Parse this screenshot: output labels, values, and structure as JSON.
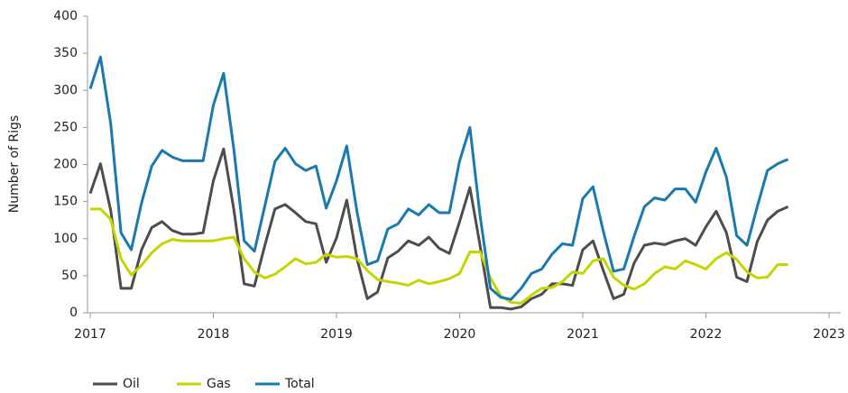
{
  "chart_data": {
    "type": "line",
    "y_label": "Number of Rigs",
    "x": [
      "2017-01",
      "2017-02",
      "2017-03",
      "2017-04",
      "2017-05",
      "2017-06",
      "2017-07",
      "2017-08",
      "2017-09",
      "2017-10",
      "2017-11",
      "2017-12",
      "2018-01",
      "2018-02",
      "2018-03",
      "2018-04",
      "2018-05",
      "2018-06",
      "2018-07",
      "2018-08",
      "2018-09",
      "2018-10",
      "2018-11",
      "2018-12",
      "2019-01",
      "2019-02",
      "2019-03",
      "2019-04",
      "2019-05",
      "2019-06",
      "2019-07",
      "2019-08",
      "2019-09",
      "2019-10",
      "2019-11",
      "2019-12",
      "2020-01",
      "2020-02",
      "2020-03",
      "2020-04",
      "2020-05",
      "2020-06",
      "2020-07",
      "2020-08",
      "2020-09",
      "2020-10",
      "2020-11",
      "2020-12",
      "2021-01",
      "2021-02",
      "2021-03",
      "2021-04",
      "2021-05",
      "2021-06",
      "2021-07",
      "2021-08",
      "2021-09",
      "2021-10",
      "2021-11",
      "2021-12",
      "2022-01",
      "2022-02",
      "2022-03",
      "2022-04",
      "2022-05",
      "2022-06",
      "2022-07",
      "2022-08",
      "2022-09"
    ],
    "series": [
      {
        "name": "Oil",
        "color": "#4d4d4d",
        "values": [
          161,
          201,
          138,
          33,
          33,
          85,
          115,
          123,
          111,
          106,
          106,
          108,
          178,
          221,
          139,
          39,
          36,
          90,
          140,
          146,
          135,
          123,
          120,
          68,
          101,
          152,
          73,
          19,
          28,
          74,
          83,
          97,
          91,
          102,
          87,
          80,
          123,
          169,
          90,
          7,
          7,
          5,
          8,
          19,
          25,
          39,
          39,
          37,
          85,
          97,
          57,
          19,
          25,
          67,
          91,
          94,
          92,
          97,
          100,
          91,
          116,
          137,
          108,
          48,
          42,
          96,
          125,
          137,
          143
        ]
      },
      {
        "name": "Gas",
        "color": "#c3d600",
        "values": [
          140,
          140,
          126,
          73,
          51,
          64,
          81,
          93,
          99,
          97,
          97,
          97,
          97,
          100,
          102,
          73,
          55,
          47,
          52,
          62,
          73,
          66,
          68,
          79,
          75,
          76,
          73,
          57,
          45,
          42,
          40,
          37,
          44,
          39,
          42,
          46,
          53,
          82,
          82,
          47,
          23,
          14,
          13,
          24,
          33,
          34,
          42,
          55,
          53,
          70,
          73,
          48,
          37,
          32,
          39,
          53,
          62,
          59,
          70,
          65,
          59,
          73,
          81,
          72,
          55,
          47,
          48,
          65,
          65
        ]
      },
      {
        "name": "Total",
        "color": "#1a7ab0",
        "values": [
          302,
          345,
          255,
          108,
          85,
          148,
          198,
          219,
          210,
          205,
          205,
          205,
          280,
          323,
          220,
          97,
          83,
          143,
          204,
          222,
          201,
          192,
          198,
          141,
          178,
          225,
          136,
          65,
          70,
          113,
          120,
          140,
          132,
          146,
          135,
          135,
          205,
          250,
          130,
          33,
          21,
          18,
          33,
          53,
          59,
          79,
          93,
          91,
          154,
          170,
          110,
          56,
          59,
          103,
          143,
          155,
          152,
          167,
          167,
          149,
          190,
          222,
          183,
          104,
          91,
          143,
          192,
          201,
          207
        ]
      }
    ],
    "xlim": [
      2017,
      2023
    ],
    "xticks": [
      2017,
      2018,
      2019,
      2020,
      2021,
      2022,
      2023
    ],
    "ylim": [
      0,
      400
    ],
    "yticks": [
      0,
      50,
      100,
      150,
      200,
      250,
      300,
      350,
      400
    ]
  }
}
